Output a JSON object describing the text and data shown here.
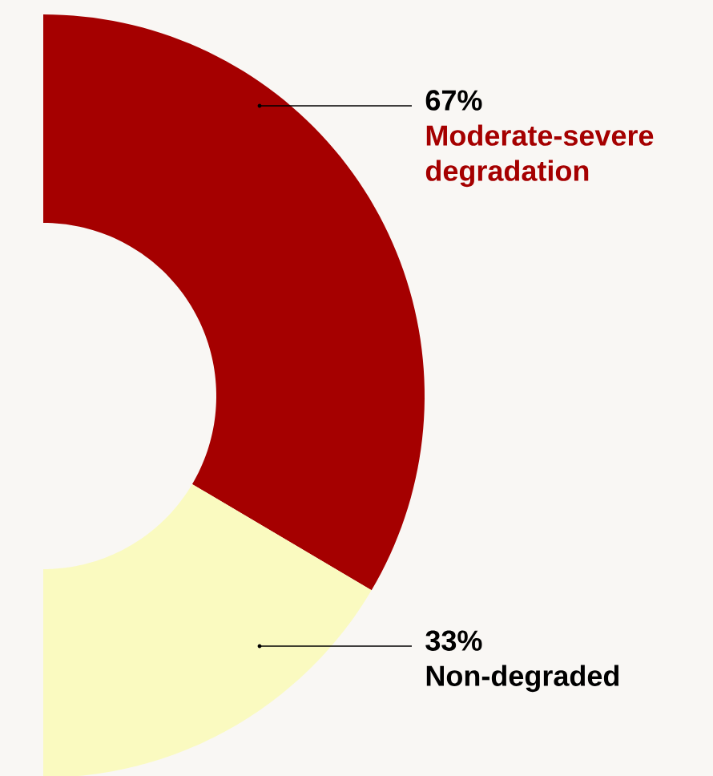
{
  "chart_data": {
    "type": "donut",
    "categories": [
      "Moderate-severe degradation",
      "Non-degraded"
    ],
    "values": [
      67,
      33
    ],
    "value_labels": [
      "67%",
      "33%"
    ],
    "colors": [
      "#a50000",
      "#fafac0"
    ]
  }
}
